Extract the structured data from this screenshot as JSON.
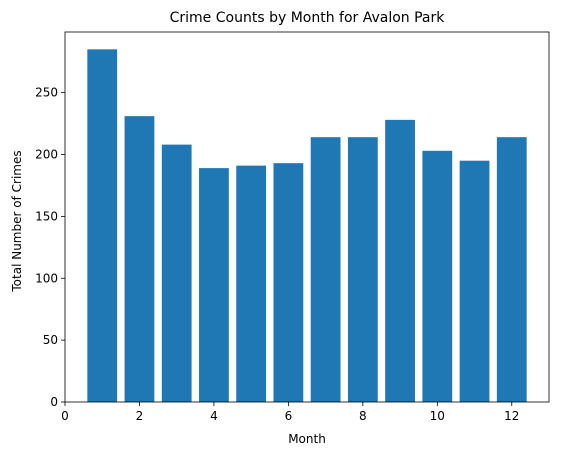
{
  "chart_data": {
    "type": "bar",
    "title": "Crime Counts by Month for Avalon Park",
    "xlabel": "Month",
    "ylabel": "Total Number of Crimes",
    "x": [
      1,
      2,
      3,
      4,
      5,
      6,
      7,
      8,
      9,
      10,
      11,
      12
    ],
    "values": [
      285,
      231,
      208,
      189,
      191,
      193,
      214,
      214,
      228,
      203,
      195,
      214
    ],
    "xlim": [
      0,
      13
    ],
    "ylim": [
      0,
      299
    ],
    "xticks": [
      0,
      2,
      4,
      6,
      8,
      10,
      12
    ],
    "yticks": [
      0,
      50,
      100,
      150,
      200,
      250
    ],
    "bar_color": "#1f77b4",
    "grid": false,
    "legend": "none"
  }
}
